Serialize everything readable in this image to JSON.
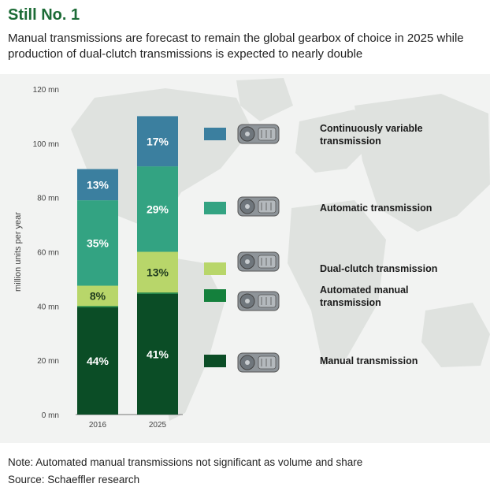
{
  "header": {
    "title": "Still No. 1",
    "subtitle": "Manual transmissions are forecast to remain the global gearbox of choice in 2025 while production of dual-clutch transmissions is expected to nearly double"
  },
  "footer": {
    "note": "Note: Automated manual transmissions not significant as volume and share",
    "source": "Source: Schaeffler research"
  },
  "colors": {
    "background": "#f2f3f2",
    "map": "#dfe2df",
    "title": "#1c6b36"
  },
  "icons": [
    "gearbox-cvt-icon",
    "gearbox-automatic-icon",
    "gearbox-dual-clutch-icon",
    "gearbox-automated-manual-icon",
    "gearbox-manual-icon"
  ],
  "chart_data": {
    "type": "bar",
    "stacked": true,
    "categories": [
      "2016",
      "2025"
    ],
    "ylabel": "million units per year",
    "ylim": [
      0,
      120
    ],
    "yticks": [
      "0 mn",
      "20 mn",
      "40 mn",
      "60 mn",
      "80 mn",
      "100 mn",
      "120 mn"
    ],
    "ytick_values": [
      0,
      20,
      40,
      60,
      80,
      100,
      120
    ],
    "series": [
      {
        "name": "Manual transmission",
        "color": "#0b4d26",
        "values": [
          39.5,
          44.5
        ],
        "labels": [
          "44%",
          "41%"
        ]
      },
      {
        "name": "Automated manual transmission",
        "color": "#14803c",
        "values": [
          0.5,
          0.5
        ],
        "labels": [
          "",
          ""
        ]
      },
      {
        "name": "Dual-clutch transmission",
        "color": "#b8d66a",
        "values": [
          7.5,
          15.0
        ],
        "labels": [
          "8%",
          "13%"
        ]
      },
      {
        "name": "Automatic transmission",
        "color": "#33a382",
        "values": [
          31.5,
          31.5
        ],
        "labels": [
          "35%",
          "29%"
        ]
      },
      {
        "name": "Continuously variable transmission",
        "color": "#3b7f9f",
        "values": [
          11.5,
          18.5
        ],
        "labels": [
          "13%",
          "17%"
        ]
      }
    ],
    "legend": {
      "placement": "right",
      "order": [
        4,
        3,
        2,
        1,
        0
      ],
      "entries": [
        [
          "Continuously variable",
          "transmission"
        ],
        [
          "Automatic transmission"
        ],
        [
          "Dual-clutch transmission"
        ],
        [
          "Automated manual",
          "transmission"
        ],
        [
          "Manual transmission"
        ]
      ]
    }
  }
}
